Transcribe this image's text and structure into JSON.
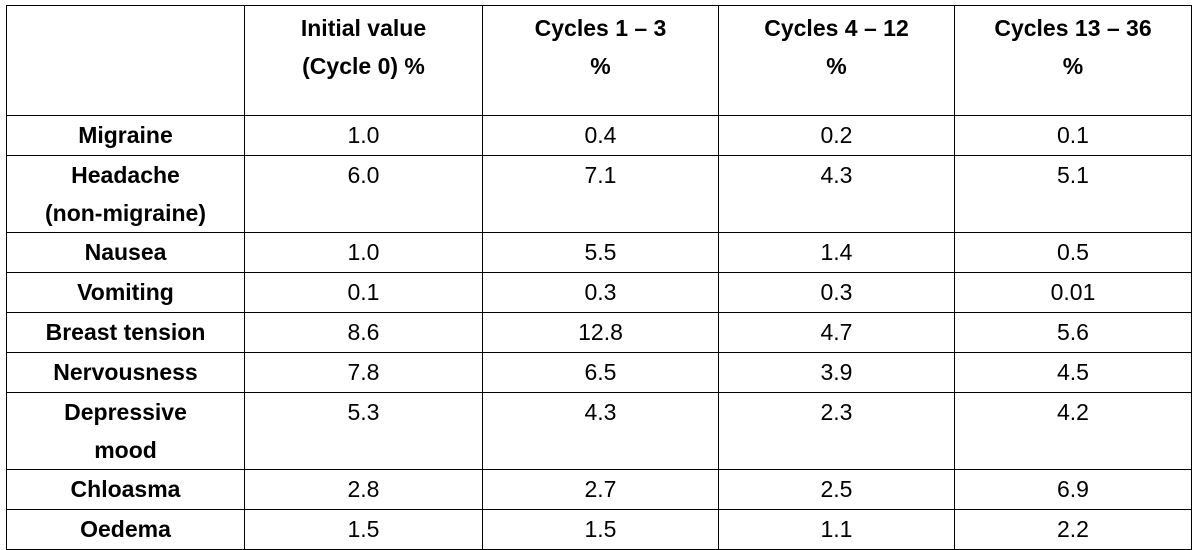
{
  "header": {
    "corner": "",
    "columns": [
      {
        "line1": "Initial value",
        "line2": "(Cycle 0) %"
      },
      {
        "line1": "Cycles 1 – 3",
        "line2": "%"
      },
      {
        "line1": "Cycles 4 – 12",
        "line2": "%"
      },
      {
        "line1": "Cycles 13 – 36",
        "line2": "%"
      }
    ]
  },
  "rows": [
    {
      "label1": "Migraine",
      "label2": "",
      "values": [
        "1.0",
        "0.4",
        "0.2",
        "0.1"
      ]
    },
    {
      "label1": "Headache",
      "label2": "(non-migraine)",
      "values": [
        "6.0",
        "7.1",
        "4.3",
        "5.1"
      ]
    },
    {
      "label1": "Nausea",
      "label2": "",
      "values": [
        "1.0",
        "5.5",
        "1.4",
        "0.5"
      ]
    },
    {
      "label1": "Vomiting",
      "label2": "",
      "values": [
        "0.1",
        "0.3",
        "0.3",
        "0.01"
      ]
    },
    {
      "label1": "Breast tension",
      "label2": "",
      "values": [
        "8.6",
        "12.8",
        "4.7",
        "5.6"
      ]
    },
    {
      "label1": "Nervousness",
      "label2": "",
      "values": [
        "7.8",
        "6.5",
        "3.9",
        "4.5"
      ]
    },
    {
      "label1": "Depressive",
      "label2": "mood",
      "values": [
        "5.3",
        "4.3",
        "2.3",
        "4.2"
      ]
    },
    {
      "label1": "Chloasma",
      "label2": "",
      "values": [
        "2.8",
        "2.7",
        "2.5",
        "6.9"
      ]
    },
    {
      "label1": "Oedema",
      "label2": "",
      "values": [
        "1.5",
        "1.5",
        "1.1",
        "2.2"
      ]
    }
  ]
}
